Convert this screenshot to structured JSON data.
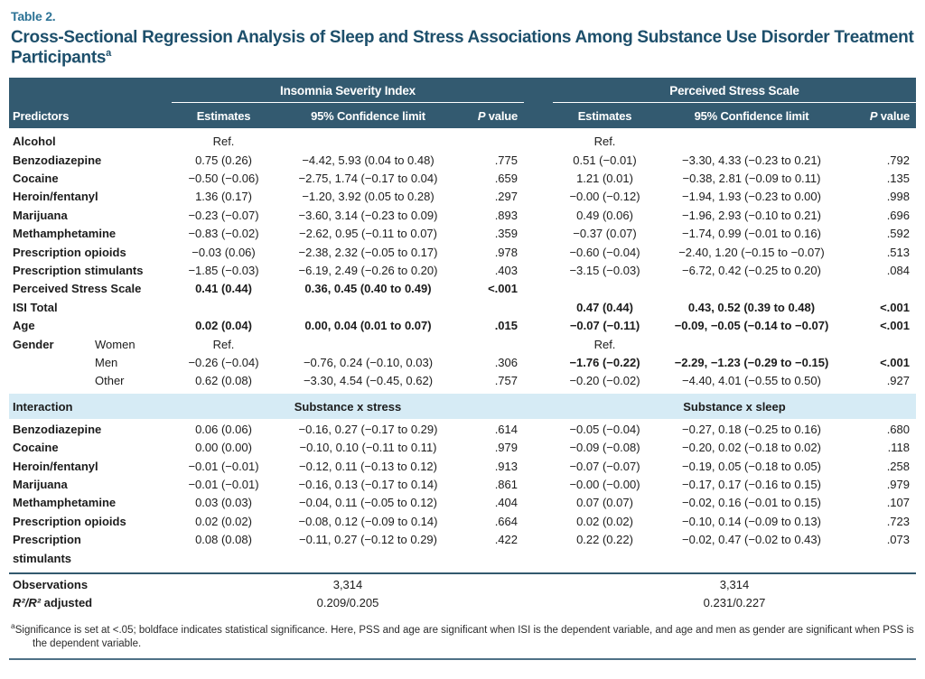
{
  "page": {
    "table_label": "Table 2.",
    "title": "Cross-Sectional Regression Analysis of Sleep and Stress Associations Among Substance Use Disorder Treatment Participants",
    "title_superscript": "a"
  },
  "colors": {
    "header_background": "#335a70",
    "interaction_band_background": "#d6ebf5",
    "title_color": "#1d4f6b",
    "table_label_color": "#2d7396",
    "rule_color": "#33596e"
  },
  "header": {
    "predictors": "Predictors",
    "groups": [
      {
        "label": "Insomnia Severity Index"
      },
      {
        "label": "Perceived Stress Scale"
      }
    ],
    "estimates": "Estimates",
    "ci": "95% Confidence limit",
    "p_italic": "P",
    "p_rest": " value"
  },
  "main_rows": [
    {
      "label": "Alcohol",
      "isi": [
        "Ref.",
        "",
        ""
      ],
      "pss": [
        "Ref.",
        "",
        ""
      ]
    },
    {
      "label": "Benzodiazepine",
      "isi": [
        "0.75 (0.26)",
        "−4.42, 5.93 (0.04 to 0.48)",
        ".775"
      ],
      "pss": [
        "0.51 (−0.01)",
        "−3.30, 4.33 (−0.23 to 0.21)",
        ".792"
      ]
    },
    {
      "label": "Cocaine",
      "isi": [
        "−0.50 (−0.06)",
        "−2.75, 1.74 (−0.17 to 0.04)",
        ".659"
      ],
      "pss": [
        "1.21 (0.01)",
        "−0.38, 2.81 (−0.09 to 0.11)",
        ".135"
      ]
    },
    {
      "label": "Heroin/fentanyl",
      "isi": [
        "1.36 (0.17)",
        "−1.20, 3.92 (0.05 to 0.28)",
        ".297"
      ],
      "pss": [
        "−0.00 (−0.12)",
        "−1.94, 1.93 (−0.23 to 0.00)",
        ".998"
      ]
    },
    {
      "label": "Marijuana",
      "isi": [
        "−0.23 (−0.07)",
        "−3.60, 3.14 (−0.23 to 0.09)",
        ".893"
      ],
      "pss": [
        "0.49 (0.06)",
        "−1.96, 2.93 (−0.10 to 0.21)",
        ".696"
      ]
    },
    {
      "label": "Methamphetamine",
      "isi": [
        "−0.83 (−0.02)",
        "−2.62, 0.95 (−0.11 to 0.07)",
        ".359"
      ],
      "pss": [
        "−0.37 (0.07)",
        "−1.74, 0.99 (−0.01 to 0.16)",
        ".592"
      ]
    },
    {
      "label": "Prescription opioids",
      "isi": [
        "−0.03 (0.06)",
        "−2.38, 2.32 (−0.05 to 0.17)",
        ".978"
      ],
      "pss": [
        "−0.60 (−0.04)",
        "−2.40, 1.20 (−0.15 to −0.07)",
        ".513"
      ]
    },
    {
      "label": "Prescription stimulants",
      "isi": [
        "−1.85 (−0.03)",
        "−6.19, 2.49 (−0.26 to 0.20)",
        ".403"
      ],
      "pss": [
        "−3.15 (−0.03)",
        "−6.72, 0.42 (−0.25 to 0.20)",
        ".084"
      ]
    },
    {
      "label": "Perceived Stress Scale",
      "isi_bold": true,
      "isi": [
        "0.41 (0.44)",
        "0.36, 0.45 (0.40 to 0.49)",
        "<.001"
      ],
      "pss": [
        "",
        "",
        ""
      ]
    },
    {
      "label": "ISI Total",
      "pss_bold": true,
      "isi": [
        "",
        "",
        ""
      ],
      "pss": [
        "0.47 (0.44)",
        "0.43, 0.52 (0.39 to 0.48)",
        "<.001"
      ]
    },
    {
      "label": "Age",
      "isi_bold": true,
      "pss_bold": true,
      "isi": [
        "0.02 (0.04)",
        "0.00, 0.04 (0.01 to 0.07)",
        ".015"
      ],
      "pss": [
        "−0.07 (−0.11)",
        "−0.09, −0.05 (−0.14 to −0.07)",
        "<.001"
      ]
    },
    {
      "label": "Gender",
      "sublabel": "Women",
      "isi": [
        "Ref.",
        "",
        ""
      ],
      "pss": [
        "Ref.",
        "",
        ""
      ]
    },
    {
      "label": "",
      "sublabel": "Men",
      "pss_bold": true,
      "isi": [
        "−0.26 (−0.04)",
        "−0.76, 0.24 (−0.10, 0.03)",
        ".306"
      ],
      "pss": [
        "−1.76 (−0.22)",
        "−2.29, −1.23 (−0.29 to −0.15)",
        "<.001"
      ]
    },
    {
      "label": "",
      "sublabel": "Other",
      "isi": [
        "0.62 (0.08)",
        "−3.30, 4.54 (−0.45, 0.62)",
        ".757"
      ],
      "pss": [
        "−0.20 (−0.02)",
        "−4.40, 4.01 (−0.55 to 0.50)",
        ".927"
      ]
    }
  ],
  "interaction": {
    "label": "Interaction",
    "isi_sublabel": "Substance x stress",
    "pss_sublabel": "Substance x sleep",
    "rows": [
      {
        "label": "Benzodiazepine",
        "isi": [
          "0.06 (0.06)",
          "−0.16, 0.27 (−0.17 to 0.29)",
          ".614"
        ],
        "pss": [
          "−0.05 (−0.04)",
          "−0.27, 0.18 (−0.25 to 0.16)",
          ".680"
        ]
      },
      {
        "label": "Cocaine",
        "isi": [
          "0.00 (0.00)",
          "−0.10, 0.10 (−0.11 to 0.11)",
          ".979"
        ],
        "pss": [
          "−0.09 (−0.08)",
          "−0.20, 0.02 (−0.18 to 0.02)",
          ".118"
        ]
      },
      {
        "label": "Heroin/fentanyl",
        "isi": [
          "−0.01 (−0.01)",
          "−0.12, 0.11 (−0.13 to 0.12)",
          ".913"
        ],
        "pss": [
          "−0.07 (−0.07)",
          "−0.19, 0.05 (−0.18 to 0.05)",
          ".258"
        ]
      },
      {
        "label": "Marijuana",
        "isi": [
          "−0.01 (−0.01)",
          "−0.16, 0.13 (−0.17 to 0.14)",
          ".861"
        ],
        "pss": [
          "−0.00 (−0.00)",
          "−0.17, 0.17 (−0.16 to 0.15)",
          ".979"
        ]
      },
      {
        "label": "Methamphetamine",
        "isi": [
          "0.03 (0.03)",
          "−0.04, 0.11 (−0.05 to 0.12)",
          ".404"
        ],
        "pss": [
          "0.07 (0.07)",
          "−0.02, 0.16 (−0.01 to 0.15)",
          ".107"
        ]
      },
      {
        "label": "Prescription opioids",
        "isi": [
          "0.02 (0.02)",
          "−0.08, 0.12 (−0.09 to 0.14)",
          ".664"
        ],
        "pss": [
          "0.02 (0.02)",
          "−0.10, 0.14 (−0.09 to 0.13)",
          ".723"
        ]
      },
      {
        "label": "Prescription stimulants",
        "wrap": true,
        "isi": [
          "0.08 (0.08)",
          "−0.11, 0.27 (−0.12 to 0.29)",
          ".422"
        ],
        "pss": [
          "0.22 (0.22)",
          "−0.02, 0.47 (−0.02 to 0.43)",
          ".073"
        ]
      }
    ]
  },
  "summary_rows": [
    {
      "label": "Observations",
      "isi": "3,314",
      "pss": "3,314"
    },
    {
      "label_italic": "R²/R²",
      "label_rest": " adjusted",
      "isi": "0.209/0.205",
      "pss": "0.231/0.227"
    }
  ],
  "footnote": {
    "marker": "a",
    "text": "Significance is set at <.05; boldface indicates statistical significance. Here, PSS and age are significant when ISI is the dependent variable, and age and men as gender are significant when PSS is the dependent variable."
  }
}
